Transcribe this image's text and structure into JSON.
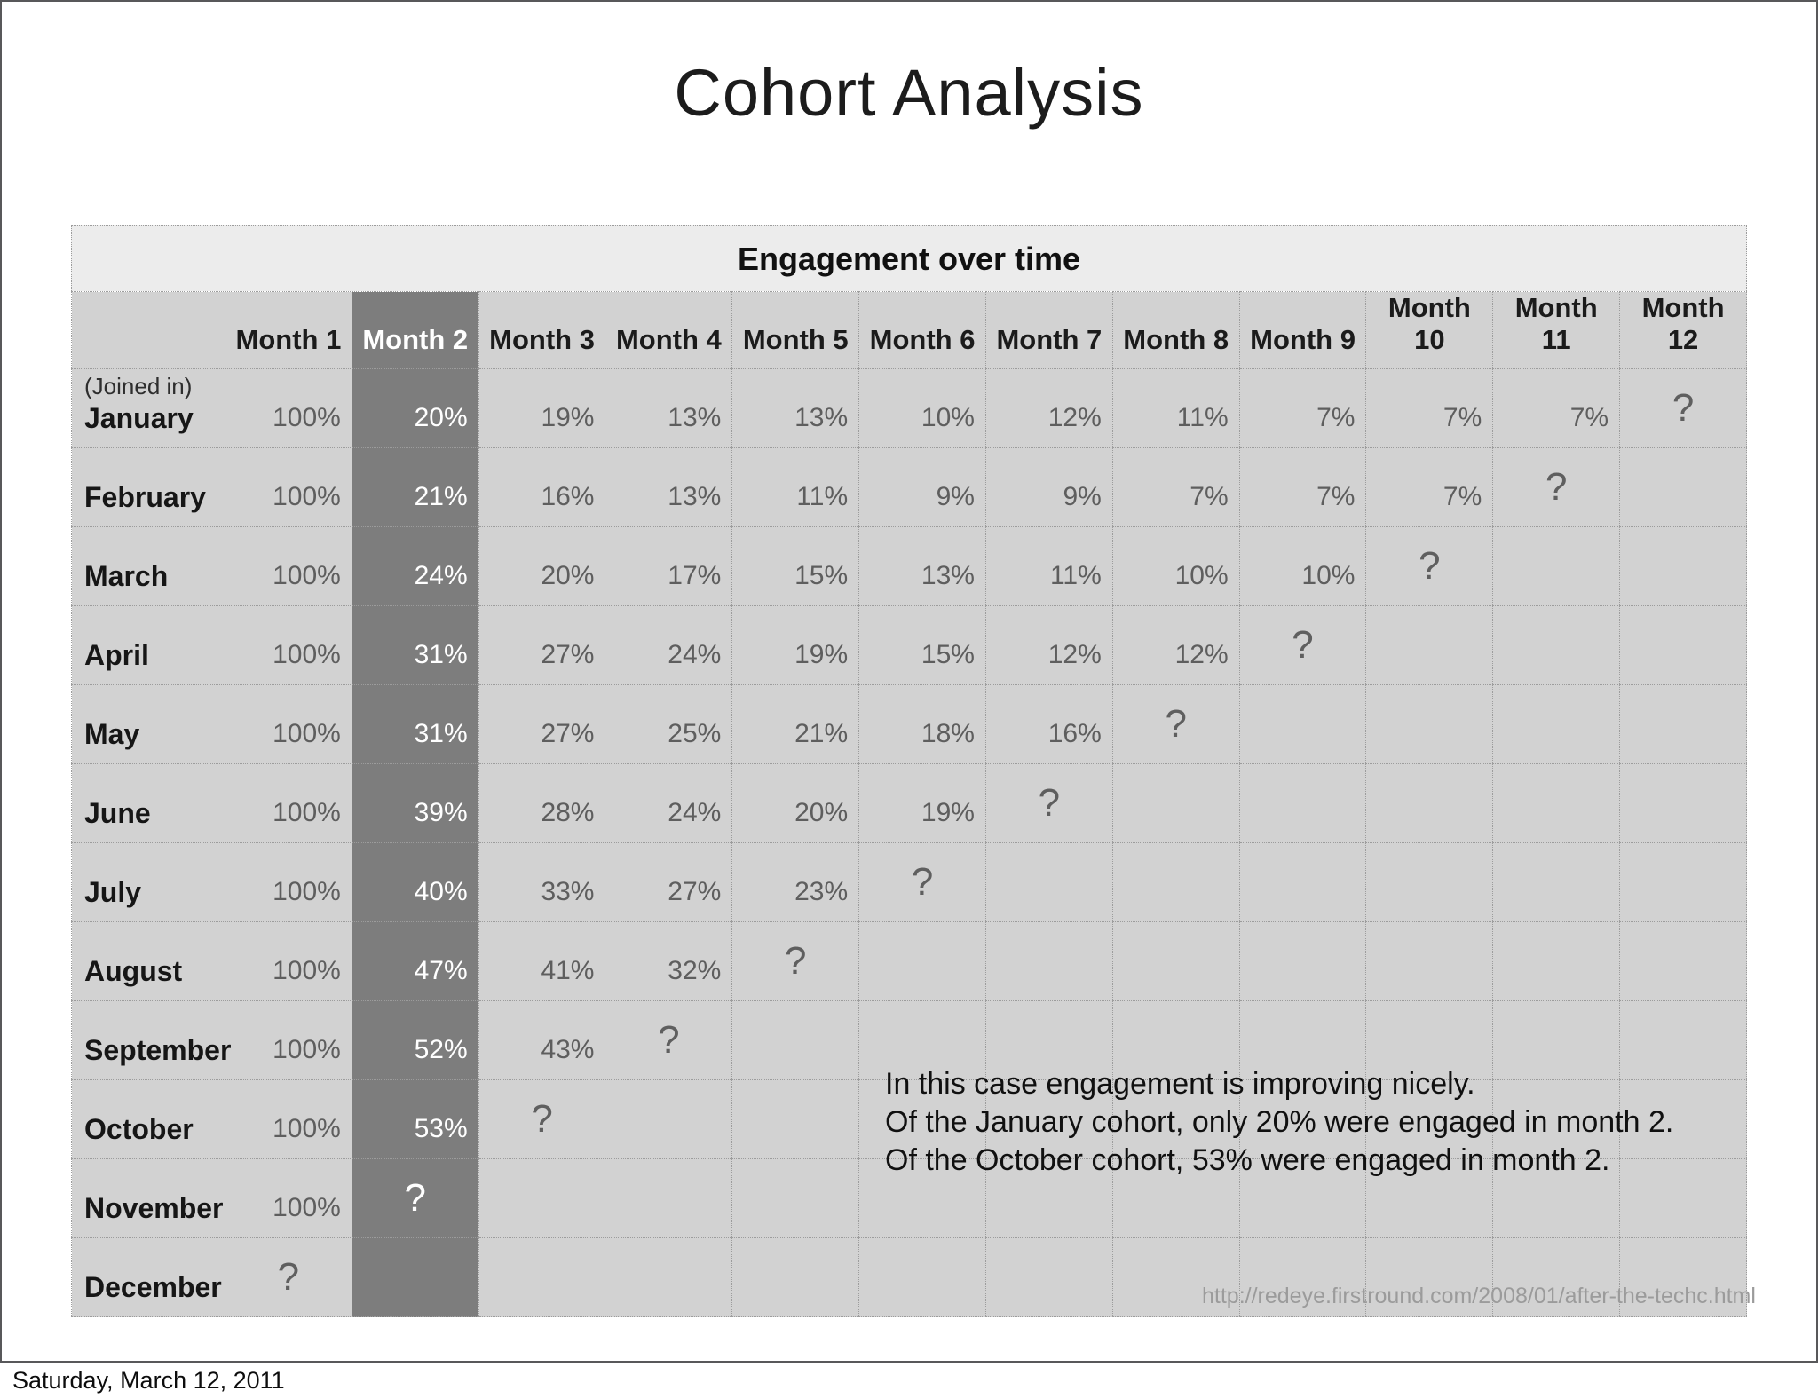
{
  "slide": {
    "title": "Cohort Analysis"
  },
  "chart_data": {
    "type": "table",
    "title": "Engagement over time",
    "columns": [
      "Month 1",
      "Month 2",
      "Month 3",
      "Month 4",
      "Month 5",
      "Month 6",
      "Month 7",
      "Month 8",
      "Month 9",
      "Month 10",
      "Month 11",
      "Month 12"
    ],
    "row_label_note": "(Joined in)",
    "highlighted_column": "Month 2",
    "unknown_marker": "?",
    "rows": [
      {
        "label": "January",
        "values": [
          "100%",
          "20%",
          "19%",
          "13%",
          "13%",
          "10%",
          "12%",
          "11%",
          "7%",
          "7%",
          "7%"
        ]
      },
      {
        "label": "February",
        "values": [
          "100%",
          "21%",
          "16%",
          "13%",
          "11%",
          "9%",
          "9%",
          "7%",
          "7%",
          "7%"
        ]
      },
      {
        "label": "March",
        "values": [
          "100%",
          "24%",
          "20%",
          "17%",
          "15%",
          "13%",
          "11%",
          "10%",
          "10%"
        ]
      },
      {
        "label": "April",
        "values": [
          "100%",
          "31%",
          "27%",
          "24%",
          "19%",
          "15%",
          "12%",
          "12%"
        ]
      },
      {
        "label": "May",
        "values": [
          "100%",
          "31%",
          "27%",
          "25%",
          "21%",
          "18%",
          "16%"
        ]
      },
      {
        "label": "June",
        "values": [
          "100%",
          "39%",
          "28%",
          "24%",
          "20%",
          "19%"
        ]
      },
      {
        "label": "July",
        "values": [
          "100%",
          "40%",
          "33%",
          "27%",
          "23%"
        ]
      },
      {
        "label": "August",
        "values": [
          "100%",
          "47%",
          "41%",
          "32%"
        ]
      },
      {
        "label": "September",
        "values": [
          "100%",
          "52%",
          "43%"
        ]
      },
      {
        "label": "October",
        "values": [
          "100%",
          "53%"
        ]
      },
      {
        "label": "November",
        "values": [
          "100%"
        ]
      },
      {
        "label": "December",
        "values": []
      }
    ]
  },
  "annotation": {
    "lines": [
      "In this case engagement is improving nicely.",
      "Of the January cohort, only 20% were engaged in month 2.",
      "Of the October cohort, 53% were engaged in month 2."
    ]
  },
  "source_url": "http://redeye.firstround.com/2008/01/after-the-techc.html",
  "footer": "Saturday, March 12, 2011",
  "colors": {
    "cell_bg": "#d2d2d2",
    "band_bg": "#ececec",
    "highlight_column_bg": "#7d7d7d",
    "value_text": "#5e5e5e",
    "highlight_text": "#ffffff",
    "dotted_border": "#9c9c9c",
    "slide_border": "#58585a",
    "url_text": "#9b9b9b"
  }
}
